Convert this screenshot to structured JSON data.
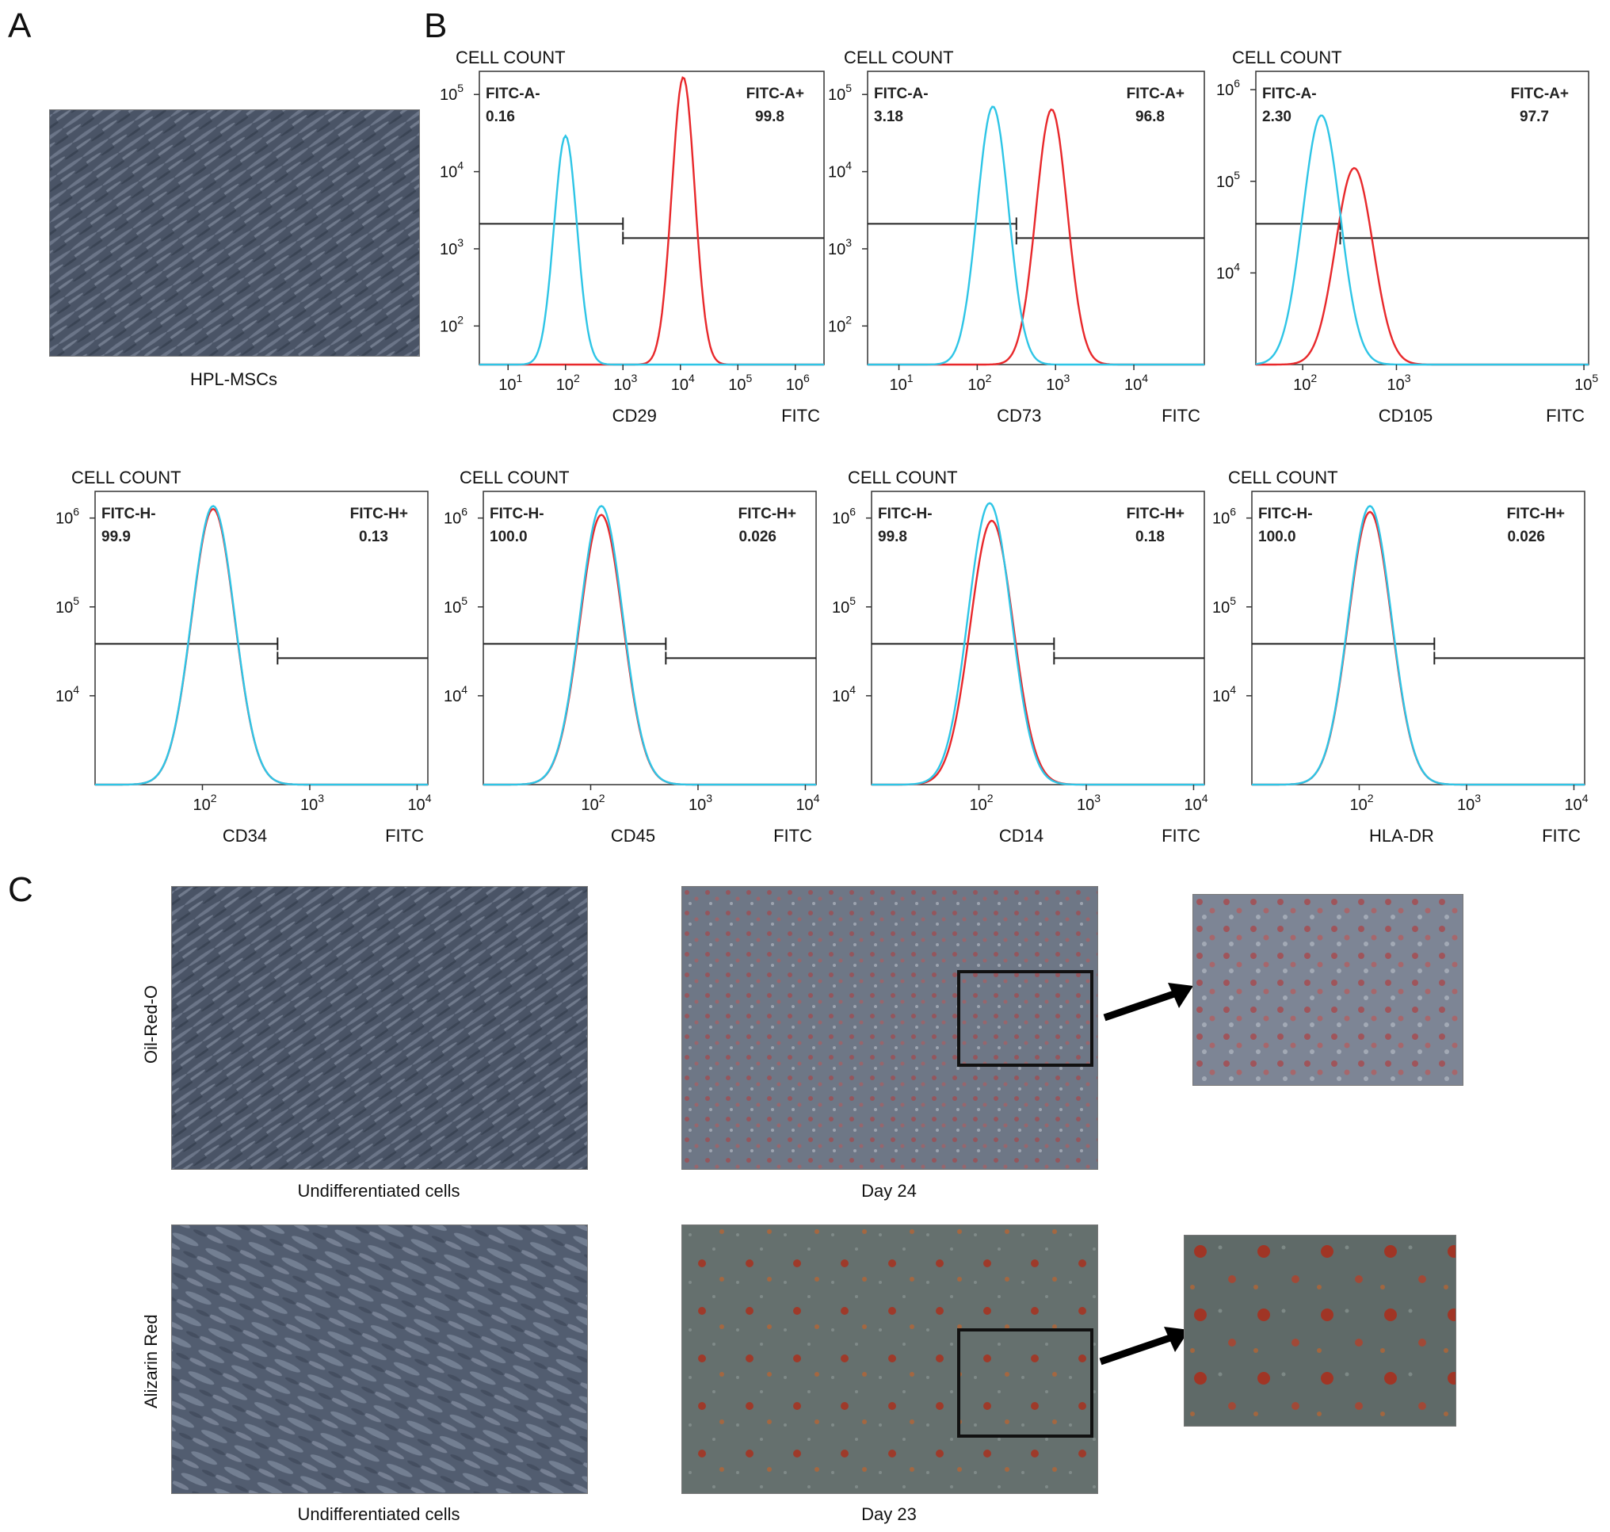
{
  "panels": {
    "a": {
      "letter": "A",
      "caption": "HPL-MSCs"
    },
    "b": {
      "letter": "B"
    },
    "c": {
      "letter": "C",
      "rows": [
        {
          "label": "Oil-Red-O",
          "undiff_caption": "Undifferentiated cells",
          "day_caption": "Day 24"
        },
        {
          "label": "Alizarin Red",
          "undiff_caption": "Undifferentiated cells",
          "day_caption": "Day 23"
        }
      ]
    }
  },
  "colors": {
    "negative": "#2ec5e6",
    "positive": "#e8282b",
    "gate": "#222222"
  },
  "chart_data": [
    {
      "type": "histogram",
      "ylabel": "CELL COUNT",
      "marker": "CD29",
      "xunit": "FITC",
      "neg_label": "FITC-A-",
      "neg_value": "0.16",
      "pos_label": "FITC-A+",
      "pos_value": "99.8",
      "x_ticks": [
        {
          "e": 1,
          "t": "10"
        },
        {
          "e": 2,
          "t": "10"
        },
        {
          "e": 3,
          "t": "10"
        },
        {
          "e": 4,
          "t": "10"
        },
        {
          "e": 5,
          "t": "10"
        },
        {
          "e": 6,
          "t": "10"
        }
      ],
      "y_ticks": [
        {
          "e": 2,
          "t": "10"
        },
        {
          "e": 3,
          "t": "10"
        },
        {
          "e": 4,
          "t": "10"
        },
        {
          "e": 5,
          "t": "10"
        }
      ],
      "peaks": {
        "negative": {
          "center_log": 2.0,
          "height": 0.78
        },
        "positive": {
          "center_log": 4.05,
          "height": 0.98
        }
      },
      "gate_log": 3.0
    },
    {
      "type": "histogram",
      "ylabel": "CELL COUNT",
      "marker": "CD73",
      "xunit": "FITC",
      "neg_label": "FITC-A-",
      "neg_value": "3.18",
      "pos_label": "FITC-A+",
      "pos_value": "96.8",
      "x_ticks": [
        {
          "e": 1,
          "t": "10"
        },
        {
          "e": 2,
          "t": "10"
        },
        {
          "e": 3,
          "t": "10"
        },
        {
          "e": 4,
          "t": "10"
        }
      ],
      "y_ticks": [
        {
          "e": 2,
          "t": "10"
        },
        {
          "e": 3,
          "t": "10"
        },
        {
          "e": 4,
          "t": "10"
        },
        {
          "e": 5,
          "t": "10"
        }
      ],
      "peaks": {
        "negative": {
          "center_log": 2.2,
          "height": 0.88
        },
        "positive": {
          "center_log": 2.95,
          "height": 0.87
        }
      },
      "gate_log": 2.5
    },
    {
      "type": "histogram",
      "ylabel": "CELL COUNT",
      "marker": "CD105",
      "xunit": "FITC",
      "neg_label": "FITC-A-",
      "neg_value": "2.30",
      "pos_label": "FITC-A+",
      "pos_value": "97.7",
      "x_ticks": [
        {
          "e": 2,
          "t": "10"
        },
        {
          "e": 3,
          "t": "10"
        },
        {
          "e": 5,
          "t": "10"
        }
      ],
      "y_ticks": [
        {
          "e": 4,
          "t": "10"
        },
        {
          "e": 5,
          "t": "10"
        },
        {
          "e": 6,
          "t": "10"
        }
      ],
      "peaks": {
        "negative": {
          "center_log": 2.2,
          "height": 0.85
        },
        "positive": {
          "center_log": 2.55,
          "height": 0.67
        }
      },
      "gate_log": 2.4
    },
    {
      "type": "histogram",
      "ylabel": "CELL COUNT",
      "marker": "CD34",
      "xunit": "FITC",
      "neg_label": "FITC-H-",
      "neg_value": "99.9",
      "pos_label": "FITC-H+",
      "pos_value": "0.13",
      "x_ticks": [
        {
          "e": 2,
          "t": "10"
        },
        {
          "e": 3,
          "t": "10"
        },
        {
          "e": 4,
          "t": "10"
        }
      ],
      "y_ticks": [
        {
          "e": 4,
          "t": "10"
        },
        {
          "e": 5,
          "t": "10"
        },
        {
          "e": 6,
          "t": "10"
        }
      ],
      "peaks": {
        "negative": {
          "center_log": 2.1,
          "height": 0.95
        },
        "positive": {
          "center_log": 2.1,
          "height": 0.94
        }
      },
      "gate_log": 2.7
    },
    {
      "type": "histogram",
      "ylabel": "CELL COUNT",
      "marker": "CD45",
      "xunit": "FITC",
      "neg_label": "FITC-H-",
      "neg_value": "100.0",
      "pos_label": "FITC-H+",
      "pos_value": "0.026",
      "x_ticks": [
        {
          "e": 2,
          "t": "10"
        },
        {
          "e": 3,
          "t": "10"
        },
        {
          "e": 4,
          "t": "10"
        }
      ],
      "y_ticks": [
        {
          "e": 4,
          "t": "10"
        },
        {
          "e": 5,
          "t": "10"
        },
        {
          "e": 6,
          "t": "10"
        }
      ],
      "peaks": {
        "negative": {
          "center_log": 2.1,
          "height": 0.95
        },
        "positive": {
          "center_log": 2.1,
          "height": 0.92
        }
      },
      "gate_log": 2.7
    },
    {
      "type": "histogram",
      "ylabel": "CELL COUNT",
      "marker": "CD14",
      "xunit": "FITC",
      "neg_label": "FITC-H-",
      "neg_value": "99.8",
      "pos_label": "FITC-H+",
      "pos_value": "0.18",
      "x_ticks": [
        {
          "e": 2,
          "t": "10"
        },
        {
          "e": 3,
          "t": "10"
        },
        {
          "e": 4,
          "t": "10"
        }
      ],
      "y_ticks": [
        {
          "e": 4,
          "t": "10"
        },
        {
          "e": 5,
          "t": "10"
        },
        {
          "e": 6,
          "t": "10"
        }
      ],
      "peaks": {
        "negative": {
          "center_log": 2.1,
          "height": 0.96
        },
        "positive": {
          "center_log": 2.12,
          "height": 0.9
        }
      },
      "gate_log": 2.7
    },
    {
      "type": "histogram",
      "ylabel": "CELL COUNT",
      "marker": "HLA-DR",
      "xunit": "FITC",
      "neg_label": "FITC-H-",
      "neg_value": "100.0",
      "pos_label": "FITC-H+",
      "pos_value": "0.026",
      "x_ticks": [
        {
          "e": 2,
          "t": "10"
        },
        {
          "e": 3,
          "t": "10"
        },
        {
          "e": 4,
          "t": "10"
        }
      ],
      "y_ticks": [
        {
          "e": 4,
          "t": "10"
        },
        {
          "e": 5,
          "t": "10"
        },
        {
          "e": 6,
          "t": "10"
        }
      ],
      "peaks": {
        "negative": {
          "center_log": 2.1,
          "height": 0.95
        },
        "positive": {
          "center_log": 2.1,
          "height": 0.93
        }
      },
      "gate_log": 2.7
    }
  ]
}
